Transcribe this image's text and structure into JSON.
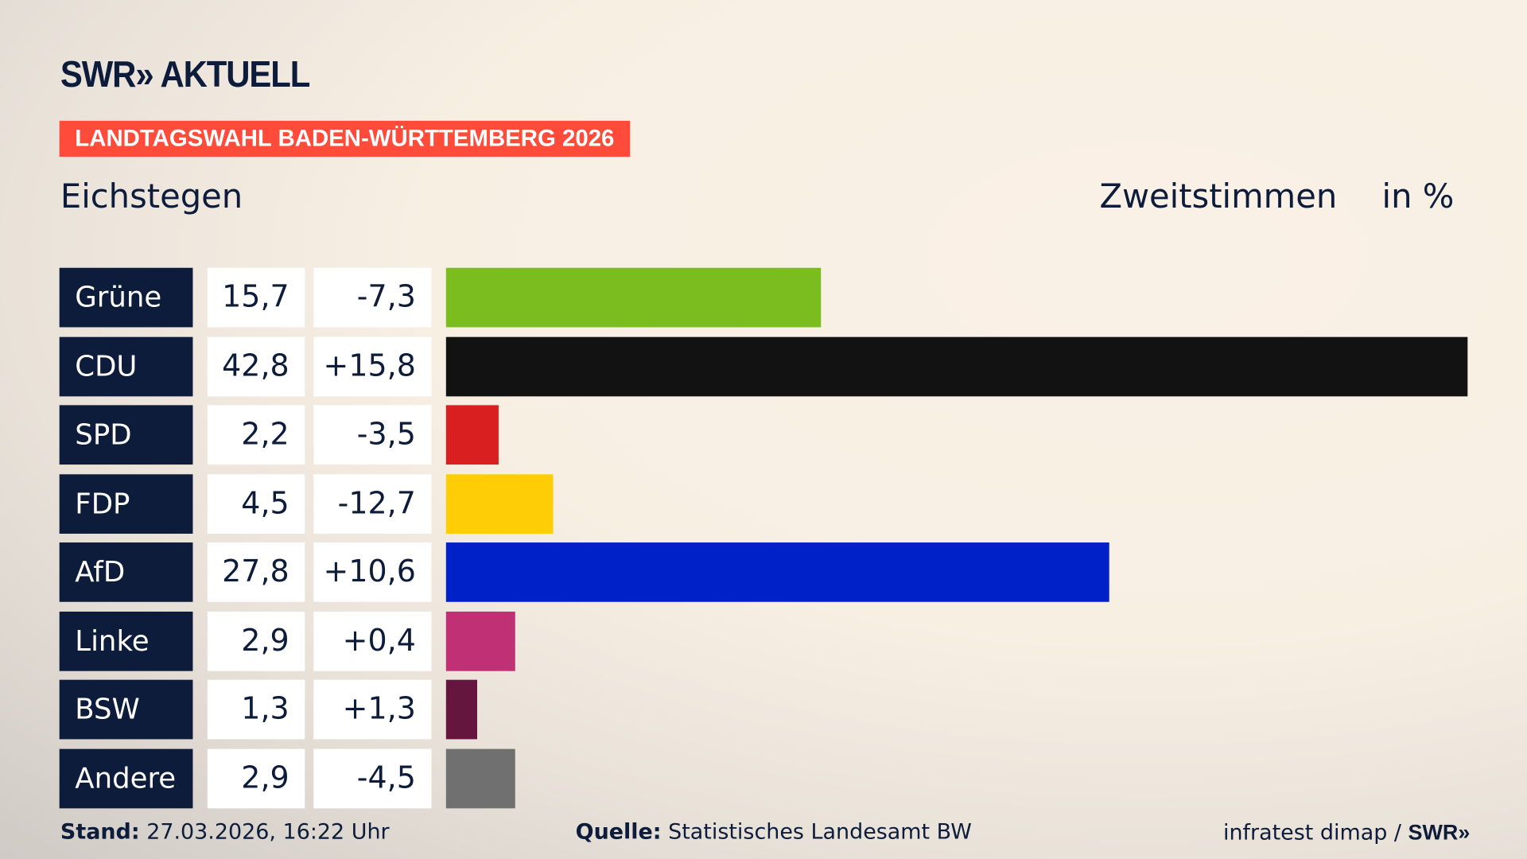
{
  "header": {
    "logo": "SWR» AKTUELL",
    "banner": "LANDTAGSWAHL BADEN-WÜRTTEMBERG 2026",
    "region": "Eichstegen",
    "vote_type": "Zweitstimmen",
    "unit": "in %"
  },
  "chart_data": {
    "type": "bar",
    "orientation": "horizontal",
    "xlim": [
      0,
      42.8
    ],
    "categories": [
      "Grüne",
      "CDU",
      "SPD",
      "FDP",
      "AfD",
      "Linke",
      "BSW",
      "Andere"
    ],
    "values": [
      15.7,
      42.8,
      2.2,
      4.5,
      27.8,
      2.9,
      1.3,
      2.9
    ],
    "value_labels": [
      "15,7",
      "42,8",
      "2,2",
      "4,5",
      "27,8",
      "2,9",
      "1,3",
      "2,9"
    ],
    "diff_labels": [
      "-7,3",
      "+15,8",
      "-3,5",
      "-12,7",
      "+10,6",
      "+0,4",
      "+1,3",
      "-4,5"
    ],
    "colors": [
      "#7bbd1e",
      "#121212",
      "#d91f1f",
      "#ffcd05",
      "#0020c8",
      "#bf3174",
      "#65163f",
      "#707070"
    ]
  },
  "footer": {
    "stand_label": "Stand:",
    "stand": "27.03.2026, 16:22 Uhr",
    "quelle_label": "Quelle:",
    "quelle": "Statistisches Landesamt BW",
    "credit": "infratest dimap / ",
    "credit_logo": "SWR»"
  }
}
